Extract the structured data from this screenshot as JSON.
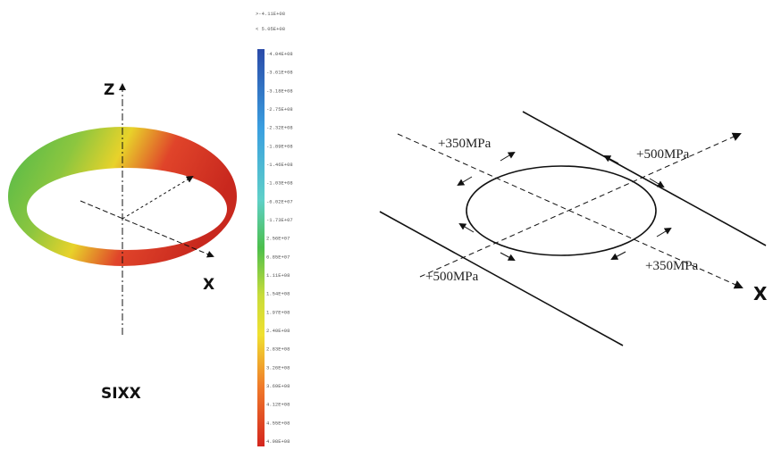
{
  "left_plot": {
    "z_axis": "Z",
    "x_axis": "X",
    "caption": "SIXX",
    "colorbar": {
      "max_label": ">-4.11E+08",
      "min_label": "< 5.05E+08",
      "labels": [
        "-4.04E+08",
        "-3.61E+08",
        "-3.18E+08",
        "-2.75E+08",
        "-2.32E+08",
        "-1.89E+08",
        "-1.46E+08",
        "-1.03E+08",
        "-6.02E+07",
        "-1.73E+07",
        "2.56E+07",
        "6.85E+07",
        "1.11E+08",
        "1.54E+08",
        "1.97E+08",
        "2.40E+08",
        "2.83E+08",
        "3.26E+08",
        "3.69E+08",
        "4.12E+08",
        "4.55E+08",
        "4.98E+08"
      ]
    }
  },
  "right_diagram": {
    "labels": [
      "+350MPa",
      "+500MPa",
      "+500MPa",
      "+350MPa"
    ],
    "x_axis": "X"
  }
}
